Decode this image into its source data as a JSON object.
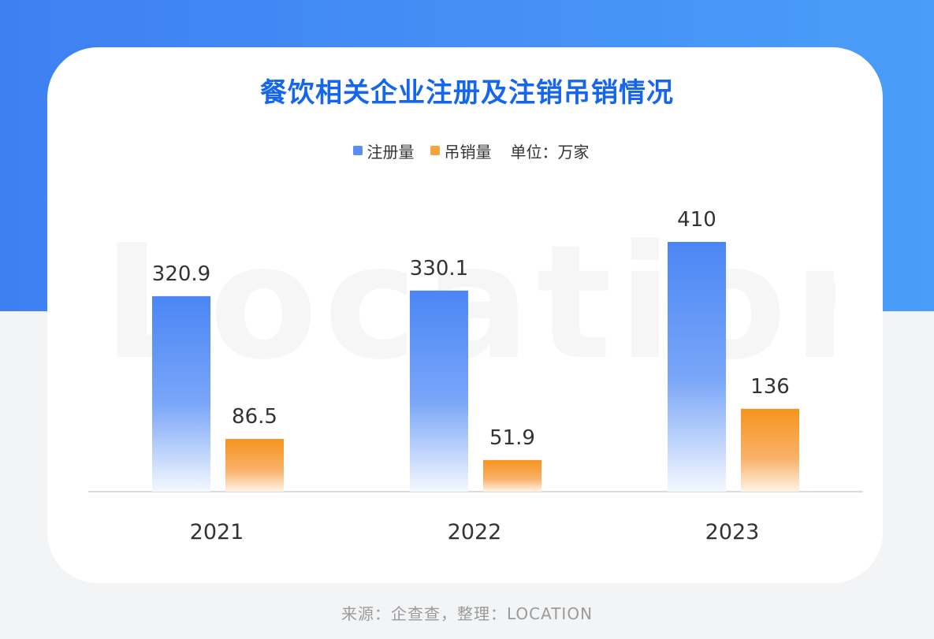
{
  "title": "餐饮相关企业注册及注销吊销情况",
  "legend": {
    "unit": "单位：万家"
  },
  "watermark": "Location",
  "source": "来源：企查查，整理：LOCATION",
  "colors": {
    "registered": "#4a86f5",
    "revoked": "#f7931e",
    "title": "#1566ee",
    "band": "#3e80f2"
  },
  "chart_data": {
    "type": "bar",
    "categories": [
      "2021",
      "2022",
      "2023"
    ],
    "series": [
      {
        "name": "注册量",
        "values": [
          320.9,
          330.1,
          410
        ],
        "labels": [
          "320.9",
          "330.1",
          "410"
        ]
      },
      {
        "name": "吊销量",
        "values": [
          86.5,
          51.9,
          136
        ],
        "labels": [
          "86.5",
          "51.9",
          "136"
        ]
      }
    ],
    "ylim": [
      0,
      410
    ],
    "grid": false,
    "legend_position": "top-center"
  }
}
